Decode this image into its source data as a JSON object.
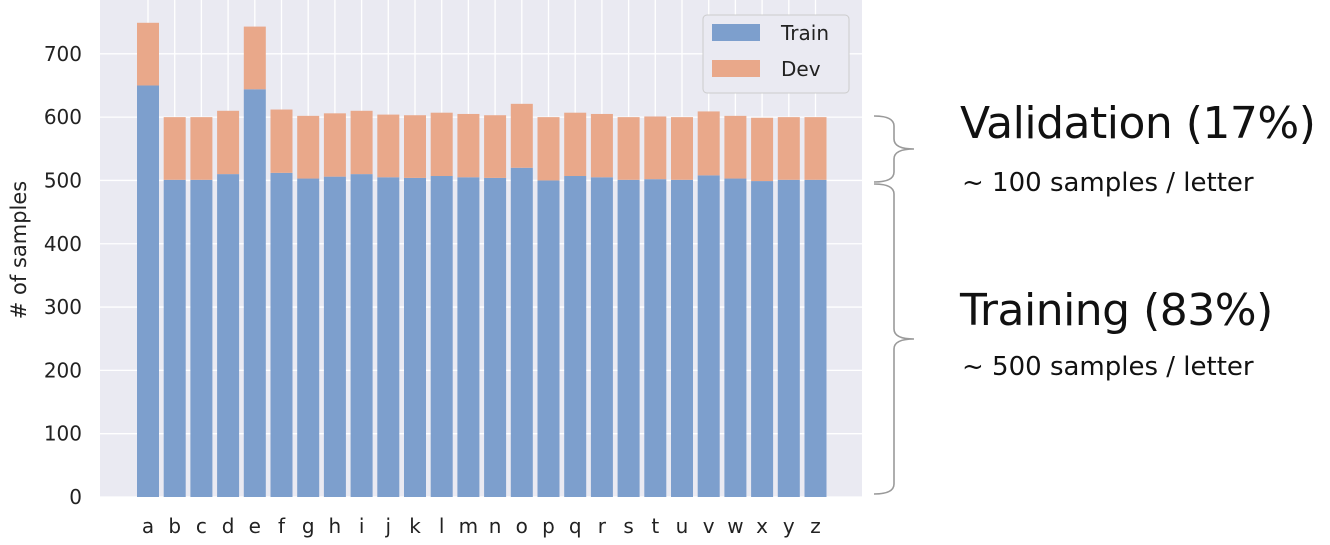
{
  "chart_data": {
    "type": "bar",
    "stacked": true,
    "categories": [
      "a",
      "b",
      "c",
      "d",
      "e",
      "f",
      "g",
      "h",
      "i",
      "j",
      "k",
      "l",
      "m",
      "n",
      "o",
      "p",
      "q",
      "r",
      "s",
      "t",
      "u",
      "v",
      "w",
      "x",
      "y",
      "z"
    ],
    "series": [
      {
        "name": "Train",
        "color": "#7d9fcd",
        "values": [
          650,
          501,
          501,
          510,
          644,
          512,
          503,
          506,
          510,
          505,
          504,
          507,
          505,
          504,
          520,
          500,
          507,
          505,
          501,
          502,
          501,
          508,
          503,
          499,
          501,
          501
        ]
      },
      {
        "name": "Dev",
        "color": "#e9a88a",
        "values": [
          99,
          99,
          99,
          100,
          99,
          100,
          99,
          100,
          100,
          99,
          99,
          100,
          100,
          99,
          101,
          100,
          100,
          100,
          99,
          99,
          99,
          101,
          99,
          100,
          99,
          99
        ]
      }
    ],
    "ylabel": "# of samples",
    "xlabel": "",
    "ylim": [
      0,
      785
    ],
    "yticks": [
      0,
      100,
      200,
      300,
      400,
      500,
      600,
      700
    ],
    "grid": true,
    "legend": "top-right",
    "background": "#eaeaf2"
  },
  "annotations": {
    "validation": {
      "title": "Validation (17%)",
      "subtitle": "~ 100 samples / letter"
    },
    "training": {
      "title": "Training (83%)",
      "subtitle": "~ 500 samples / letter"
    }
  }
}
